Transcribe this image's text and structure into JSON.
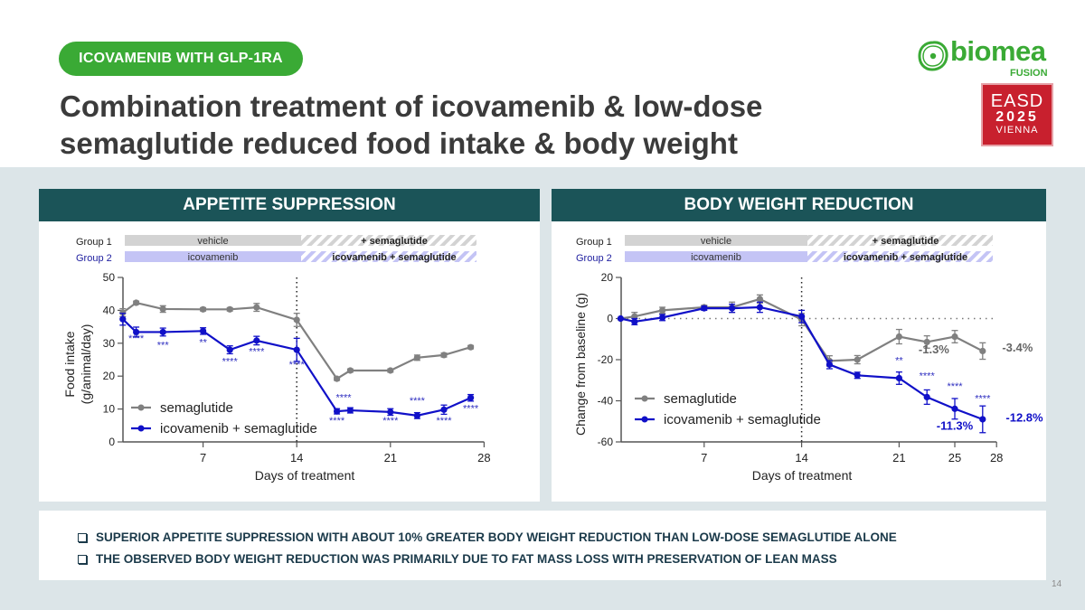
{
  "header": {
    "tag": "ICOVAMENIB WITH GLP-1RA",
    "title_line1": "Combination treatment of icovamenib & low-dose",
    "title_line2": "semaglutide reduced food intake & body weight",
    "logo_word": "biomea",
    "logo_sub": "FUSION",
    "conference_line1": "EASD",
    "conference_line2": "2025",
    "conference_line3": "VIENNA"
  },
  "panels": {
    "left_title": "APPETITE SUPPRESSION",
    "right_title": "BODY WEIGHT REDUCTION"
  },
  "colors": {
    "brand_green": "#3aaa35",
    "panel_header": "#1b5458",
    "semaglutide": "#808080",
    "combo": "#1010c8",
    "group1_bar": "#d3d3d3",
    "group2_bar": "#c4c4f5"
  },
  "groups": {
    "group1_label": "Group 1",
    "group2_label": "Group 2",
    "group1_phase1": "vehicle",
    "group1_phase2": "+ semaglutide",
    "group2_phase1": "icovamenib",
    "group2_phase2": "icovamenib + semaglutide"
  },
  "chart_data": [
    {
      "type": "line",
      "title": "APPETITE SUPPRESSION",
      "xlabel": "Days of treatment",
      "ylabel": "Food intake (g/animal/day)",
      "xlim": [
        0,
        28
      ],
      "ylim": [
        0,
        50
      ],
      "xticks": [
        7,
        14,
        21,
        28
      ],
      "yticks": [
        0,
        10,
        20,
        30,
        40,
        50
      ],
      "vline_day": 14,
      "legend_position": "bottom-left",
      "series": [
        {
          "name": "semaglutide",
          "x": [
            1,
            2,
            4,
            7,
            9,
            11,
            14,
            17,
            18,
            21,
            23,
            25,
            27
          ],
          "values": [
            39.3,
            42.3,
            40.4,
            40.3,
            40.3,
            40.9,
            37.1,
            19.2,
            21.7,
            21.7,
            25.6,
            26.4,
            28.8
          ],
          "errors": [
            1.2,
            0.5,
            1.0,
            0.5,
            0.5,
            1.2,
            2.0,
            0.5,
            0.5,
            0.5,
            0.8,
            0.6,
            0.5
          ]
        },
        {
          "name": "icovamenib + semaglutide",
          "x": [
            1,
            2,
            4,
            7,
            9,
            11,
            14,
            17,
            18,
            21,
            23,
            25,
            27
          ],
          "values": [
            37.3,
            33.4,
            33.4,
            33.7,
            28.0,
            30.8,
            28.0,
            9.3,
            9.6,
            9.1,
            8.0,
            9.8,
            13.4
          ],
          "errors": [
            1.8,
            1.5,
            1.2,
            1.0,
            1.2,
            1.3,
            3.5,
            0.8,
            0.8,
            1.0,
            0.9,
            1.4,
            1.0
          ]
        }
      ],
      "annotations": [
        {
          "x": 2,
          "y": 30.5,
          "text": "****"
        },
        {
          "x": 4,
          "y": 28.5,
          "text": "***"
        },
        {
          "x": 7,
          "y": 29.2,
          "text": "**"
        },
        {
          "x": 9,
          "y": 23.5,
          "text": "****"
        },
        {
          "x": 11,
          "y": 26.5,
          "text": "****"
        },
        {
          "x": 14,
          "y": 22.5,
          "text": "****"
        },
        {
          "x": 17.5,
          "y": 12.5,
          "text": "****"
        },
        {
          "x": 17,
          "y": 5.5,
          "text": "****"
        },
        {
          "x": 21,
          "y": 5.5,
          "text": "****"
        },
        {
          "x": 23,
          "y": 11.5,
          "text": "****"
        },
        {
          "x": 25,
          "y": 5.5,
          "text": "****"
        },
        {
          "x": 27,
          "y": 9.2,
          "text": "****"
        }
      ]
    },
    {
      "type": "line",
      "title": "BODY WEIGHT REDUCTION",
      "xlabel": "Days of treatment",
      "ylabel": "Change from baseline (g)",
      "xlim": [
        0,
        28
      ],
      "ylim": [
        -60,
        20
      ],
      "xticks": [
        7,
        14,
        21,
        25,
        28
      ],
      "yticks": [
        -60,
        -40,
        -20,
        0,
        20
      ],
      "vline_day": 14,
      "hline_y": 0,
      "legend_position": "bottom-left",
      "series": [
        {
          "name": "semaglutide",
          "x": [
            1,
            2,
            4,
            7,
            9,
            11,
            14,
            16,
            18,
            21,
            23,
            25,
            27
          ],
          "values": [
            0,
            1.0,
            4.0,
            5.5,
            5.5,
            9.5,
            -0.5,
            -20.6,
            -20.0,
            -8.8,
            -11.4,
            -8.8,
            -15.8
          ],
          "errors": [
            0,
            2.0,
            1.5,
            1.0,
            2.5,
            2.0,
            3.0,
            2.5,
            2.0,
            3.5,
            3.0,
            3.0,
            4.0
          ]
        },
        {
          "name": "icovamenib + semaglutide",
          "x": [
            1,
            2,
            4,
            7,
            9,
            11,
            14,
            16,
            18,
            21,
            23,
            25,
            27
          ],
          "values": [
            0,
            -1.5,
            0.5,
            5.0,
            5.0,
            5.5,
            1.0,
            -22.4,
            -27.6,
            -29.0,
            -38.2,
            -43.9,
            -49.0
          ],
          "errors": [
            0,
            1.5,
            1.5,
            1.0,
            2.0,
            2.5,
            3.0,
            2.0,
            1.5,
            3.0,
            3.5,
            5.0,
            6.5
          ]
        }
      ],
      "annotations": [
        {
          "x": 21,
          "y": -22,
          "text": "**",
          "color": "blue"
        },
        {
          "x": 23,
          "y": -29.5,
          "text": "****",
          "color": "blue"
        },
        {
          "x": 25,
          "y": -34.5,
          "text": "****",
          "color": "blue"
        },
        {
          "x": 27,
          "y": -40.5,
          "text": "****",
          "color": "blue"
        },
        {
          "x": 23.5,
          "y": -17,
          "text": "-1.3%",
          "color": "gray"
        },
        {
          "x": 29.5,
          "y": -16,
          "text": "-3.4%",
          "color": "gray"
        },
        {
          "x": 25,
          "y": -54,
          "text": "-11.3%",
          "color": "blue"
        },
        {
          "x": 30,
          "y": -50,
          "text": "-12.8%",
          "color": "blue"
        }
      ]
    }
  ],
  "bullets": [
    "SUPERIOR APPETITE SUPPRESSION WITH ABOUT 10% GREATER BODY WEIGHT REDUCTION THAN LOW-DOSE SEMAGLUTIDE ALONE",
    "THE OBSERVED BODY WEIGHT REDUCTION WAS PRIMARILY DUE TO FAT MASS LOSS WITH PRESERVATION OF LEAN MASS"
  ],
  "page_number": "14"
}
